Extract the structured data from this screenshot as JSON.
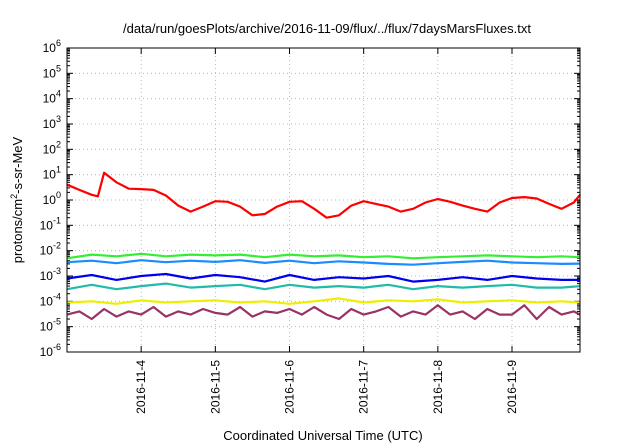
{
  "chart_data": {
    "type": "line",
    "title": "/data/run/goesPlots/archive/2016-11-09/flux/../flux/7daysMarsFluxes.txt",
    "xlabel": "Coordinated Universal Time (UTC)",
    "ylabel": {
      "base": "protons/cm",
      "sup": "2",
      "rest": "-s-sr-MeV"
    },
    "xlim": [
      "2016-11-03 00:00",
      "2016-11-09 22:00"
    ],
    "x_ticks": [
      "2016-11-4",
      "2016-11-5",
      "2016-11-6",
      "2016-11-7",
      "2016-11-8",
      "2016-11-9"
    ],
    "y_scale": "log",
    "ylim": [
      1e-06,
      1000000.0
    ],
    "y_ticks": [
      {
        "base": "10",
        "exp": "-6"
      },
      {
        "base": "10",
        "exp": "-5"
      },
      {
        "base": "10",
        "exp": "-4"
      },
      {
        "base": "10",
        "exp": "-3"
      },
      {
        "base": "10",
        "exp": "-2"
      },
      {
        "base": "10",
        "exp": "-1"
      },
      {
        "base": "10",
        "exp": "0"
      },
      {
        "base": "10",
        "exp": "1"
      },
      {
        "base": "10",
        "exp": "2"
      },
      {
        "base": "10",
        "exp": "3"
      },
      {
        "base": "10",
        "exp": "4"
      },
      {
        "base": "10",
        "exp": "5"
      },
      {
        "base": "10",
        "exp": "6"
      }
    ],
    "grid": true,
    "series": [
      {
        "color": "#ff0000",
        "x": [
          "2016-11-03 00:00",
          "2016-11-03 04:00",
          "2016-11-03 08:00",
          "2016-11-03 10:00",
          "2016-11-03 12:00",
          "2016-11-03 16:00",
          "2016-11-03 20:00",
          "2016-11-04 00:00",
          "2016-11-04 04:00",
          "2016-11-04 08:00",
          "2016-11-04 12:00",
          "2016-11-04 16:00",
          "2016-11-04 20:00",
          "2016-11-05 00:00",
          "2016-11-05 04:00",
          "2016-11-05 08:00",
          "2016-11-05 12:00",
          "2016-11-05 16:00",
          "2016-11-05 20:00",
          "2016-11-06 00:00",
          "2016-11-06 04:00",
          "2016-11-06 08:00",
          "2016-11-06 12:00",
          "2016-11-06 16:00",
          "2016-11-06 20:00",
          "2016-11-07 00:00",
          "2016-11-07 04:00",
          "2016-11-07 08:00",
          "2016-11-07 12:00",
          "2016-11-07 16:00",
          "2016-11-07 20:00",
          "2016-11-08 00:00",
          "2016-11-08 04:00",
          "2016-11-08 08:00",
          "2016-11-08 12:00",
          "2016-11-08 16:00",
          "2016-11-08 20:00",
          "2016-11-09 00:00",
          "2016-11-09 04:00",
          "2016-11-09 08:00",
          "2016-11-09 12:00",
          "2016-11-09 16:00",
          "2016-11-09 20:00",
          "2016-11-09 22:00"
        ],
        "y": [
          4,
          2.5,
          1.6,
          1.4,
          12,
          5,
          2.8,
          2.7,
          2.5,
          1.5,
          0.6,
          0.35,
          0.55,
          0.9,
          0.85,
          0.55,
          0.25,
          0.28,
          0.55,
          0.85,
          0.9,
          0.45,
          0.2,
          0.25,
          0.6,
          0.9,
          0.7,
          0.55,
          0.35,
          0.45,
          0.8,
          1.1,
          0.85,
          0.6,
          0.45,
          0.35,
          0.8,
          1.2,
          1.3,
          1.15,
          0.7,
          0.45,
          0.8,
          1.6
        ]
      },
      {
        "color": "#33ee33",
        "x": [
          "2016-11-03 00:00",
          "2016-11-03 08:00",
          "2016-11-03 16:00",
          "2016-11-04 00:00",
          "2016-11-04 08:00",
          "2016-11-04 16:00",
          "2016-11-05 00:00",
          "2016-11-05 08:00",
          "2016-11-05 16:00",
          "2016-11-06 00:00",
          "2016-11-06 08:00",
          "2016-11-06 16:00",
          "2016-11-07 00:00",
          "2016-11-07 08:00",
          "2016-11-07 16:00",
          "2016-11-08 00:00",
          "2016-11-08 08:00",
          "2016-11-08 16:00",
          "2016-11-09 00:00",
          "2016-11-09 08:00",
          "2016-11-09 16:00",
          "2016-11-09 22:00"
        ],
        "y": [
          0.005,
          0.007,
          0.006,
          0.0075,
          0.006,
          0.007,
          0.0065,
          0.007,
          0.0055,
          0.007,
          0.006,
          0.0065,
          0.0055,
          0.006,
          0.005,
          0.0055,
          0.006,
          0.0065,
          0.006,
          0.0055,
          0.006,
          0.0055
        ]
      },
      {
        "color": "#1a8cff",
        "x": [
          "2016-11-03 00:00",
          "2016-11-03 08:00",
          "2016-11-03 16:00",
          "2016-11-04 00:00",
          "2016-11-04 08:00",
          "2016-11-04 16:00",
          "2016-11-05 00:00",
          "2016-11-05 08:00",
          "2016-11-05 16:00",
          "2016-11-06 00:00",
          "2016-11-06 08:00",
          "2016-11-06 16:00",
          "2016-11-07 00:00",
          "2016-11-07 08:00",
          "2016-11-07 16:00",
          "2016-11-08 00:00",
          "2016-11-08 08:00",
          "2016-11-08 16:00",
          "2016-11-09 00:00",
          "2016-11-09 08:00",
          "2016-11-09 16:00",
          "2016-11-09 22:00"
        ],
        "y": [
          0.0035,
          0.004,
          0.0032,
          0.0042,
          0.0035,
          0.004,
          0.0036,
          0.0042,
          0.0033,
          0.004,
          0.0032,
          0.0038,
          0.0034,
          0.003,
          0.0028,
          0.0032,
          0.0036,
          0.004,
          0.0034,
          0.0032,
          0.003,
          0.0031
        ]
      },
      {
        "color": "#0000ee",
        "x": [
          "2016-11-03 00:00",
          "2016-11-03 08:00",
          "2016-11-03 16:00",
          "2016-11-04 00:00",
          "2016-11-04 08:00",
          "2016-11-04 16:00",
          "2016-11-05 00:00",
          "2016-11-05 08:00",
          "2016-11-05 16:00",
          "2016-11-06 00:00",
          "2016-11-06 08:00",
          "2016-11-06 16:00",
          "2016-11-07 00:00",
          "2016-11-07 08:00",
          "2016-11-07 16:00",
          "2016-11-08 00:00",
          "2016-11-08 08:00",
          "2016-11-08 16:00",
          "2016-11-09 00:00",
          "2016-11-09 08:00",
          "2016-11-09 16:00",
          "2016-11-09 22:00"
        ],
        "y": [
          0.0008,
          0.0011,
          0.0007,
          0.001,
          0.0012,
          0.0008,
          0.0011,
          0.0009,
          0.0006,
          0.0011,
          0.0007,
          0.0009,
          0.0008,
          0.001,
          0.0006,
          0.0007,
          0.0009,
          0.0007,
          0.001,
          0.0008,
          0.0007,
          0.0007
        ]
      },
      {
        "color": "#22bbaa",
        "x": [
          "2016-11-03 00:00",
          "2016-11-03 08:00",
          "2016-11-03 16:00",
          "2016-11-04 00:00",
          "2016-11-04 08:00",
          "2016-11-04 16:00",
          "2016-11-05 00:00",
          "2016-11-05 08:00",
          "2016-11-05 16:00",
          "2016-11-06 00:00",
          "2016-11-06 08:00",
          "2016-11-06 16:00",
          "2016-11-07 00:00",
          "2016-11-07 08:00",
          "2016-11-07 16:00",
          "2016-11-08 00:00",
          "2016-11-08 08:00",
          "2016-11-08 16:00",
          "2016-11-09 00:00",
          "2016-11-09 08:00",
          "2016-11-09 16:00",
          "2016-11-09 22:00"
        ],
        "y": [
          0.0003,
          0.00045,
          0.0003,
          0.0004,
          0.0005,
          0.00035,
          0.0004,
          0.00045,
          0.0003,
          0.00045,
          0.00035,
          0.0004,
          0.00035,
          0.00045,
          0.0003,
          0.0004,
          0.00035,
          0.0004,
          0.00045,
          0.00035,
          0.00035,
          0.0004
        ]
      },
      {
        "color": "#eeee00",
        "x": [
          "2016-11-03 00:00",
          "2016-11-03 08:00",
          "2016-11-03 16:00",
          "2016-11-04 00:00",
          "2016-11-04 08:00",
          "2016-11-04 16:00",
          "2016-11-05 00:00",
          "2016-11-05 08:00",
          "2016-11-05 16:00",
          "2016-11-06 00:00",
          "2016-11-06 08:00",
          "2016-11-06 16:00",
          "2016-11-07 00:00",
          "2016-11-07 08:00",
          "2016-11-07 16:00",
          "2016-11-08 00:00",
          "2016-11-08 08:00",
          "2016-11-08 16:00",
          "2016-11-09 00:00",
          "2016-11-09 08:00",
          "2016-11-09 16:00",
          "2016-11-09 22:00"
        ],
        "y": [
          9e-05,
          0.0001,
          8e-05,
          0.00011,
          9e-05,
          0.0001,
          0.00011,
          9e-05,
          0.0001,
          8e-05,
          0.0001,
          0.00013,
          9e-05,
          0.00011,
          0.0001,
          0.00012,
          9e-05,
          0.0001,
          0.00011,
          9e-05,
          0.0001,
          9e-05
        ]
      },
      {
        "color": "#993366",
        "x": [
          "2016-11-03 00:00",
          "2016-11-03 04:00",
          "2016-11-03 08:00",
          "2016-11-03 12:00",
          "2016-11-03 16:00",
          "2016-11-03 20:00",
          "2016-11-04 00:00",
          "2016-11-04 04:00",
          "2016-11-04 08:00",
          "2016-11-04 12:00",
          "2016-11-04 16:00",
          "2016-11-04 20:00",
          "2016-11-05 00:00",
          "2016-11-05 04:00",
          "2016-11-05 08:00",
          "2016-11-05 12:00",
          "2016-11-05 16:00",
          "2016-11-05 20:00",
          "2016-11-06 00:00",
          "2016-11-06 04:00",
          "2016-11-06 08:00",
          "2016-11-06 12:00",
          "2016-11-06 16:00",
          "2016-11-06 20:00",
          "2016-11-07 00:00",
          "2016-11-07 04:00",
          "2016-11-07 08:00",
          "2016-11-07 12:00",
          "2016-11-07 16:00",
          "2016-11-07 20:00",
          "2016-11-08 00:00",
          "2016-11-08 04:00",
          "2016-11-08 08:00",
          "2016-11-08 12:00",
          "2016-11-08 16:00",
          "2016-11-08 20:00",
          "2016-11-09 00:00",
          "2016-11-09 04:00",
          "2016-11-09 08:00",
          "2016-11-09 12:00",
          "2016-11-09 16:00",
          "2016-11-09 20:00",
          "2016-11-09 22:00"
        ],
        "y": [
          3e-05,
          4e-05,
          2e-05,
          5e-05,
          2.5e-05,
          4e-05,
          3e-05,
          6e-05,
          2.5e-05,
          4e-05,
          3e-05,
          5e-05,
          3.5e-05,
          3e-05,
          6e-05,
          2.5e-05,
          4e-05,
          3.5e-05,
          5e-05,
          3e-05,
          6e-05,
          3e-05,
          2e-05,
          5e-05,
          3e-05,
          4e-05,
          6e-05,
          2.5e-05,
          4e-05,
          3e-05,
          7e-05,
          3e-05,
          4e-05,
          2e-05,
          5e-05,
          3e-05,
          3e-05,
          7e-05,
          2e-05,
          6e-05,
          3e-05,
          4e-05,
          3e-05
        ]
      }
    ]
  }
}
